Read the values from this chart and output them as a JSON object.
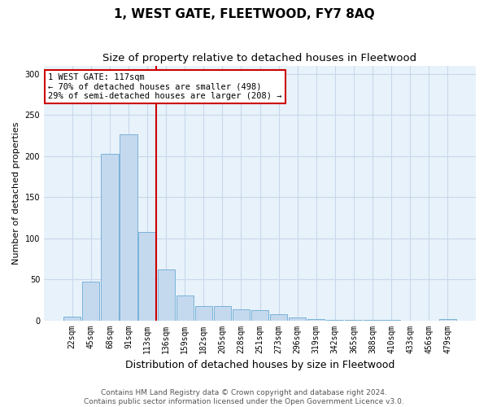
{
  "title": "1, WEST GATE, FLEETWOOD, FY7 8AQ",
  "subtitle": "Size of property relative to detached houses in Fleetwood",
  "xlabel": "Distribution of detached houses by size in Fleetwood",
  "ylabel": "Number of detached properties",
  "categories": [
    "22sqm",
    "45sqm",
    "68sqm",
    "91sqm",
    "113sqm",
    "136sqm",
    "159sqm",
    "182sqm",
    "205sqm",
    "228sqm",
    "251sqm",
    "273sqm",
    "296sqm",
    "319sqm",
    "342sqm",
    "365sqm",
    "388sqm",
    "410sqm",
    "433sqm",
    "456sqm",
    "479sqm"
  ],
  "values": [
    5,
    47,
    203,
    226,
    108,
    62,
    30,
    17,
    17,
    13,
    12,
    7,
    4,
    2,
    1,
    1,
    1,
    1,
    0,
    0,
    2
  ],
  "bar_color": "#c5d9ee",
  "bar_edge_color": "#6aaad4",
  "grid_color": "#c8d8ea",
  "background_color": "#e8f2fb",
  "vline_color": "#cc0000",
  "vline_x_index": 4,
  "annotation_text": "1 WEST GATE: 117sqm\n← 70% of detached houses are smaller (498)\n29% of semi-detached houses are larger (208) →",
  "annotation_box_color": "#ffffff",
  "annotation_box_edge": "#cc0000",
  "ylim": [
    0,
    310
  ],
  "yticks": [
    0,
    50,
    100,
    150,
    200,
    250,
    300
  ],
  "footer1": "Contains HM Land Registry data © Crown copyright and database right 2024.",
  "footer2": "Contains public sector information licensed under the Open Government Licence v3.0.",
  "title_fontsize": 11,
  "subtitle_fontsize": 9.5,
  "xlabel_fontsize": 9,
  "ylabel_fontsize": 8,
  "tick_fontsize": 7,
  "annotation_fontsize": 7.5,
  "footer_fontsize": 6.5
}
